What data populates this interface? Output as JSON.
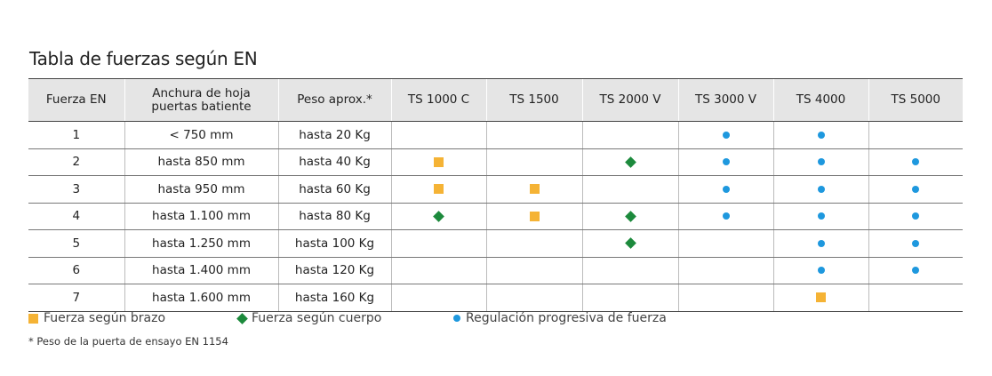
{
  "title": "Tabla de fuerzas según EN",
  "table": {
    "columns": [
      "Fuerza EN",
      "Anchura de hoja\npuertas batiente",
      "Peso aprox.*",
      "TS 1000 C",
      "TS 1500",
      "TS 2000 V",
      "TS 3000 V",
      "TS 4000",
      "TS 5000"
    ],
    "rows": [
      {
        "cells": [
          "1",
          "< 750 mm",
          "hasta 20 Kg"
        ],
        "marks": [
          null,
          null,
          null,
          "circle",
          "circle",
          null
        ]
      },
      {
        "cells": [
          "2",
          "hasta 850 mm",
          "hasta  40 Kg"
        ],
        "marks": [
          "square",
          null,
          "diamond",
          "circle",
          "circle",
          "circle"
        ]
      },
      {
        "cells": [
          "3",
          "hasta 950 mm",
          "hasta 60 Kg"
        ],
        "marks": [
          "square",
          "square",
          null,
          "circle",
          "circle",
          "circle"
        ]
      },
      {
        "cells": [
          "4",
          "hasta 1.100 mm",
          "hasta 80 Kg"
        ],
        "marks": [
          "diamond",
          "square",
          "diamond",
          "circle",
          "circle",
          "circle"
        ]
      },
      {
        "cells": [
          "5",
          "hasta 1.250 mm",
          "hasta 100 Kg"
        ],
        "marks": [
          null,
          null,
          "diamond",
          null,
          "circle",
          "circle"
        ]
      },
      {
        "cells": [
          "6",
          "hasta 1.400 mm",
          "hasta 120 Kg"
        ],
        "marks": [
          null,
          null,
          null,
          null,
          "circle",
          "circle"
        ]
      },
      {
        "cells": [
          "7",
          "hasta 1.600 mm",
          "hasta 160 Kg"
        ],
        "marks": [
          null,
          null,
          null,
          null,
          "square",
          null
        ]
      }
    ]
  },
  "legend": [
    {
      "shape": "square",
      "color": "#f5b335",
      "label": "Fuerza según brazo"
    },
    {
      "shape": "diamond",
      "color": "#1c8a3c",
      "label": "Fuerza según cuerpo"
    },
    {
      "shape": "circle",
      "color": "#1e98de",
      "label": "Regulación progresiva de fuerza"
    }
  ],
  "footnote": "* Peso de la puerta de ensayo EN 1154"
}
